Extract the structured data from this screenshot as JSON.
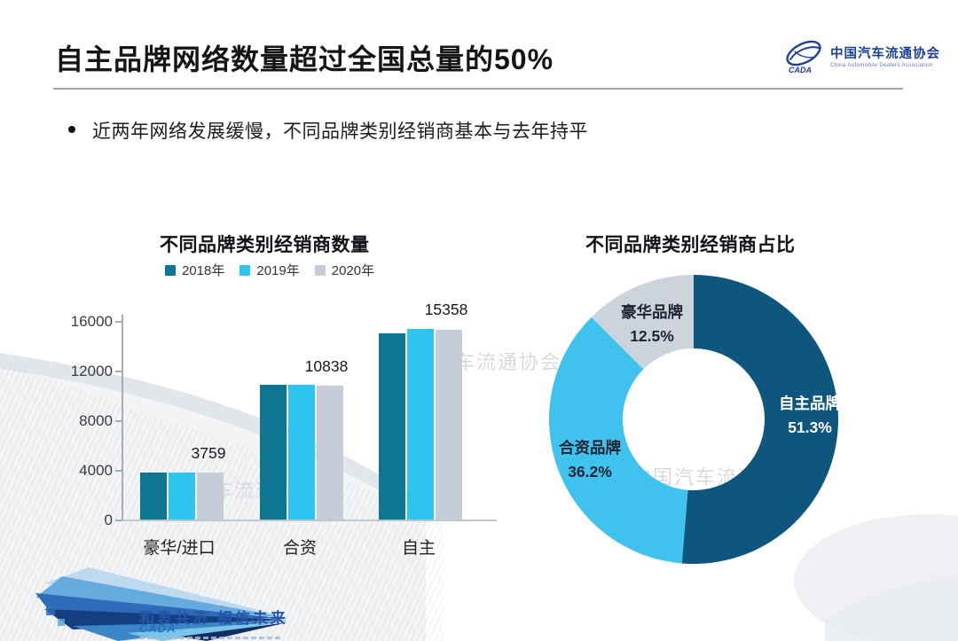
{
  "slide": {
    "title": "自主品牌网络数量超过全国总量的50%",
    "bullet": "近两年网络发展缓慢，不同品牌类别经销商基本与去年持平",
    "logo": {
      "name_cn": "中国汽车流通协会",
      "name_en": "China Automobile Dealers Association",
      "icon": "cada-ellipse-swoosh",
      "accent_color": "#1d3f94"
    },
    "footer": {
      "slogan": "和衷共济 相信未来",
      "logo_text": "CADA",
      "accent_color": "#2456a8"
    },
    "watermarks": [
      "车流通",
      "车流通协会",
      "中国汽车流通"
    ]
  },
  "chart_data": [
    {
      "type": "bar",
      "title": "不同品牌类别经销商数量",
      "categories": [
        "豪华/进口",
        "合资",
        "自主"
      ],
      "series": [
        {
          "name": "2018年",
          "color": "#0e7592",
          "values": [
            3800,
            10838,
            14980
          ]
        },
        {
          "name": "2019年",
          "color": "#2fc3f2",
          "values": [
            3759,
            10838,
            15358
          ]
        },
        {
          "name": "2020年",
          "color": "#c6ccd8",
          "values": [
            3759,
            10800,
            15300
          ]
        }
      ],
      "data_labels": [
        "3759",
        "10838",
        "15358"
      ],
      "ylabel": "",
      "xlabel": "",
      "ylim": [
        0,
        16000
      ],
      "yticks": [
        0,
        4000,
        8000,
        12000,
        16000
      ],
      "legend_position": "top",
      "grid": false
    },
    {
      "type": "pie",
      "donut": true,
      "title": "不同品牌类别经销商占比",
      "start_angle_deg": 0,
      "direction": "clockwise",
      "slices": [
        {
          "label": "自主品牌",
          "value": 51.3,
          "pct_text": "51.3%",
          "color": "#0e567e",
          "text_color": "#ffffff"
        },
        {
          "label": "合资品牌",
          "value": 36.2,
          "pct_text": "36.2%",
          "color": "#3fc2ee",
          "text_color": "#1f2430"
        },
        {
          "label": "豪华品牌",
          "value": 12.5,
          "pct_text": "12.5%",
          "color": "#ccd3dd",
          "text_color": "#1f2430"
        }
      ]
    }
  ]
}
